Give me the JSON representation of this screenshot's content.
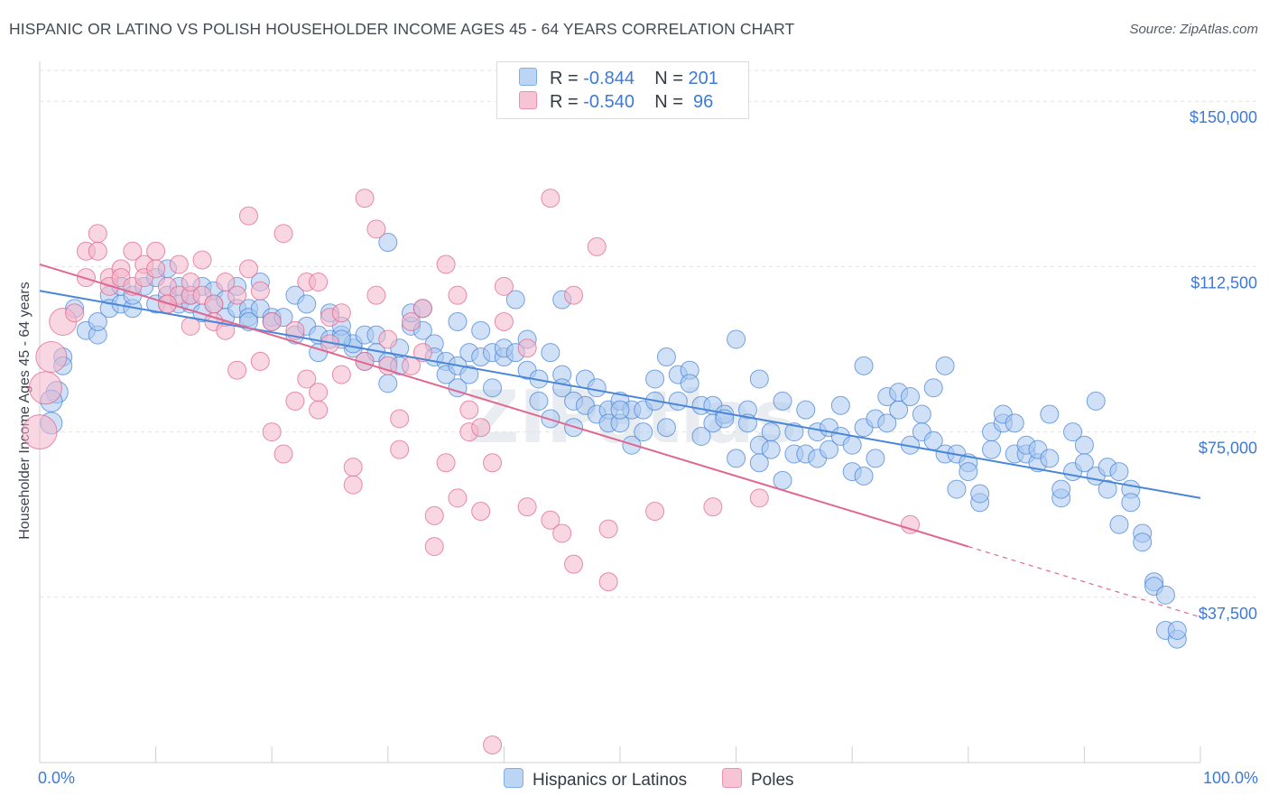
{
  "title": "HISPANIC OR LATINO VS POLISH HOUSEHOLDER INCOME AGES 45 - 64 YEARS CORRELATION CHART",
  "source": "Source: ZipAtlas.com",
  "watermark": "ZIPatlas",
  "legend_top": [
    {
      "r_label": "R =",
      "r_value": "-0.844",
      "n_label": "N =",
      "n_value": "201",
      "color": "#7eaee8",
      "fill": "#bdd5f4"
    },
    {
      "r_label": "R =",
      "r_value": "-0.540",
      "n_label": "N =",
      "n_value": " 96",
      "color": "#ef8fae",
      "fill": "#f7c4d5"
    }
  ],
  "chart_data": {
    "type": "scatter",
    "title": "HISPANIC OR LATINO VS POLISH HOUSEHOLDER INCOME AGES 45 - 64 YEARS CORRELATION CHART",
    "xlabel": "",
    "ylabel": "Householder Income Ages 45 - 64 years",
    "xlim": [
      0,
      100
    ],
    "ylim": [
      0,
      157000
    ],
    "x_tick_labels": [
      "0.0%",
      "100.0%"
    ],
    "y_ticks": [
      37500,
      75000,
      112500,
      150000
    ],
    "y_tick_labels": [
      "$37,500",
      "$75,000",
      "$112,500",
      "$150,000"
    ],
    "grid": "horizontal dashed",
    "legend_position": "bottom-center",
    "series": [
      {
        "name": "Hispanics or Latinos",
        "color": "#4a86d8",
        "fill": "#a9c8f0",
        "trend": {
          "x": [
            0,
            100
          ],
          "y": [
            107000,
            60000
          ],
          "style": "solid"
        },
        "points": [
          [
            2,
            92000
          ],
          [
            1,
            77000
          ],
          [
            1.5,
            84000
          ],
          [
            1,
            82000
          ],
          [
            2,
            90000
          ],
          [
            3,
            103000
          ],
          [
            4,
            98000
          ],
          [
            5,
            97000
          ],
          [
            5,
            100000
          ],
          [
            6,
            106000
          ],
          [
            6,
            103000
          ],
          [
            7,
            104000
          ],
          [
            7,
            108000
          ],
          [
            8,
            103000
          ],
          [
            8,
            106000
          ],
          [
            9,
            108000
          ],
          [
            10,
            104000
          ],
          [
            10,
            110000
          ],
          [
            11,
            112000
          ],
          [
            11,
            106000
          ],
          [
            12,
            104000
          ],
          [
            12,
            108000
          ],
          [
            13,
            104000
          ],
          [
            13,
            106000
          ],
          [
            14,
            108000
          ],
          [
            14,
            102000
          ],
          [
            15,
            107000
          ],
          [
            15,
            104000
          ],
          [
            16,
            105000
          ],
          [
            16,
            101000
          ],
          [
            17,
            108000
          ],
          [
            17,
            103000
          ],
          [
            18,
            103000
          ],
          [
            18,
            101000
          ],
          [
            19,
            109000
          ],
          [
            19,
            103000
          ],
          [
            20,
            101000
          ],
          [
            20,
            100000
          ],
          [
            21,
            101000
          ],
          [
            22,
            106000
          ],
          [
            22,
            97000
          ],
          [
            23,
            104000
          ],
          [
            23,
            99000
          ],
          [
            24,
            93000
          ],
          [
            24,
            97000
          ],
          [
            25,
            102000
          ],
          [
            25,
            96000
          ],
          [
            26,
            97000
          ],
          [
            26,
            99000
          ],
          [
            27,
            94000
          ],
          [
            27,
            95000
          ],
          [
            28,
            97000
          ],
          [
            28,
            91000
          ],
          [
            29,
            97000
          ],
          [
            29,
            93000
          ],
          [
            30,
            91000
          ],
          [
            30,
            86000
          ],
          [
            31,
            94000
          ],
          [
            31,
            90000
          ],
          [
            32,
            99000
          ],
          [
            32,
            102000
          ],
          [
            33,
            98000
          ],
          [
            33,
            103000
          ],
          [
            34,
            95000
          ],
          [
            34,
            92000
          ],
          [
            35,
            91000
          ],
          [
            35,
            88000
          ],
          [
            36,
            90000
          ],
          [
            36,
            85000
          ],
          [
            37,
            93000
          ],
          [
            37,
            88000
          ],
          [
            38,
            98000
          ],
          [
            38,
            92000
          ],
          [
            39,
            93000
          ],
          [
            39,
            85000
          ],
          [
            40,
            92000
          ],
          [
            40,
            94000
          ],
          [
            41,
            93000
          ],
          [
            41,
            105000
          ],
          [
            42,
            96000
          ],
          [
            42,
            89000
          ],
          [
            43,
            87000
          ],
          [
            43,
            82000
          ],
          [
            44,
            93000
          ],
          [
            44,
            78000
          ],
          [
            45,
            88000
          ],
          [
            45,
            85000
          ],
          [
            46,
            82000
          ],
          [
            46,
            76000
          ],
          [
            47,
            87000
          ],
          [
            47,
            81000
          ],
          [
            48,
            85000
          ],
          [
            48,
            79000
          ],
          [
            49,
            80000
          ],
          [
            49,
            77000
          ],
          [
            50,
            82000
          ],
          [
            50,
            77000
          ],
          [
            51,
            80000
          ],
          [
            51,
            72000
          ],
          [
            52,
            80000
          ],
          [
            52,
            75000
          ],
          [
            53,
            87000
          ],
          [
            53,
            82000
          ],
          [
            54,
            92000
          ],
          [
            54,
            76000
          ],
          [
            55,
            82000
          ],
          [
            55,
            88000
          ],
          [
            56,
            89000
          ],
          [
            56,
            86000
          ],
          [
            57,
            81000
          ],
          [
            57,
            74000
          ],
          [
            58,
            77000
          ],
          [
            58,
            81000
          ],
          [
            59,
            79000
          ],
          [
            59,
            78000
          ],
          [
            60,
            96000
          ],
          [
            60,
            69000
          ],
          [
            61,
            80000
          ],
          [
            61,
            77000
          ],
          [
            62,
            72000
          ],
          [
            62,
            68000
          ],
          [
            63,
            75000
          ],
          [
            63,
            71000
          ],
          [
            64,
            82000
          ],
          [
            64,
            64000
          ],
          [
            65,
            75000
          ],
          [
            65,
            70000
          ],
          [
            66,
            80000
          ],
          [
            66,
            70000
          ],
          [
            67,
            75000
          ],
          [
            67,
            69000
          ],
          [
            68,
            76000
          ],
          [
            68,
            71000
          ],
          [
            69,
            81000
          ],
          [
            69,
            74000
          ],
          [
            70,
            72000
          ],
          [
            70,
            66000
          ],
          [
            71,
            76000
          ],
          [
            71,
            90000
          ],
          [
            72,
            78000
          ],
          [
            72,
            69000
          ],
          [
            73,
            83000
          ],
          [
            73,
            77000
          ],
          [
            74,
            80000
          ],
          [
            74,
            84000
          ],
          [
            75,
            83000
          ],
          [
            75,
            72000
          ],
          [
            76,
            79000
          ],
          [
            76,
            75000
          ],
          [
            77,
            85000
          ],
          [
            77,
            73000
          ],
          [
            78,
            90000
          ],
          [
            78,
            70000
          ],
          [
            79,
            70000
          ],
          [
            79,
            62000
          ],
          [
            80,
            68000
          ],
          [
            80,
            66000
          ],
          [
            81,
            59000
          ],
          [
            81,
            61000
          ],
          [
            82,
            71000
          ],
          [
            82,
            75000
          ],
          [
            83,
            77000
          ],
          [
            83,
            79000
          ],
          [
            84,
            70000
          ],
          [
            84,
            77000
          ],
          [
            85,
            70000
          ],
          [
            85,
            72000
          ],
          [
            86,
            68000
          ],
          [
            86,
            71000
          ],
          [
            87,
            79000
          ],
          [
            87,
            69000
          ],
          [
            88,
            60000
          ],
          [
            88,
            62000
          ],
          [
            89,
            75000
          ],
          [
            89,
            66000
          ],
          [
            90,
            72000
          ],
          [
            90,
            68000
          ],
          [
            91,
            82000
          ],
          [
            91,
            65000
          ],
          [
            92,
            62000
          ],
          [
            92,
            67000
          ],
          [
            93,
            54000
          ],
          [
            93,
            66000
          ],
          [
            94,
            62000
          ],
          [
            94,
            59000
          ],
          [
            95,
            52000
          ],
          [
            95,
            50000
          ],
          [
            96,
            41000
          ],
          [
            96,
            40000
          ],
          [
            97,
            38000
          ],
          [
            97,
            30000
          ],
          [
            98,
            28000
          ],
          [
            98,
            30000
          ],
          [
            50,
            80000
          ],
          [
            30,
            118000
          ],
          [
            45,
            105000
          ],
          [
            62,
            87000
          ],
          [
            26,
            96000
          ],
          [
            18,
            100000
          ],
          [
            36,
            100000
          ],
          [
            71,
            65000
          ]
        ]
      },
      {
        "name": "Poles",
        "color": "#e0688f",
        "fill": "#f4b6ca",
        "trend": {
          "x": [
            0,
            80
          ],
          "y": [
            113000,
            49000
          ],
          "style": "solid",
          "dashed_extension": {
            "x": [
              80,
              100
            ],
            "y": [
              49000,
              33000
            ]
          }
        },
        "points": [
          [
            0,
            75000
          ],
          [
            0.5,
            85000
          ],
          [
            1,
            92000
          ],
          [
            2,
            100000
          ],
          [
            3,
            102000
          ],
          [
            4,
            110000
          ],
          [
            4,
            116000
          ],
          [
            5,
            120000
          ],
          [
            5,
            116000
          ],
          [
            6,
            110000
          ],
          [
            6,
            108000
          ],
          [
            7,
            112000
          ],
          [
            7,
            110000
          ],
          [
            8,
            108000
          ],
          [
            8,
            116000
          ],
          [
            9,
            113000
          ],
          [
            9,
            110000
          ],
          [
            10,
            116000
          ],
          [
            10,
            112000
          ],
          [
            11,
            108000
          ],
          [
            11,
            104000
          ],
          [
            12,
            113000
          ],
          [
            12,
            106000
          ],
          [
            13,
            106000
          ],
          [
            13,
            99000
          ],
          [
            14,
            114000
          ],
          [
            14,
            106000
          ],
          [
            15,
            104000
          ],
          [
            15,
            100000
          ],
          [
            16,
            98000
          ],
          [
            16,
            109000
          ],
          [
            17,
            106000
          ],
          [
            17,
            89000
          ],
          [
            18,
            112000
          ],
          [
            18,
            124000
          ],
          [
            19,
            107000
          ],
          [
            19,
            91000
          ],
          [
            20,
            100000
          ],
          [
            20,
            75000
          ],
          [
            21,
            120000
          ],
          [
            21,
            70000
          ],
          [
            22,
            98000
          ],
          [
            22,
            82000
          ],
          [
            23,
            87000
          ],
          [
            23,
            109000
          ],
          [
            24,
            84000
          ],
          [
            24,
            80000
          ],
          [
            25,
            101000
          ],
          [
            25,
            95000
          ],
          [
            26,
            88000
          ],
          [
            26,
            102000
          ],
          [
            27,
            67000
          ],
          [
            27,
            63000
          ],
          [
            28,
            128000
          ],
          [
            28,
            91000
          ],
          [
            29,
            121000
          ],
          [
            29,
            106000
          ],
          [
            30,
            96000
          ],
          [
            30,
            90000
          ],
          [
            31,
            71000
          ],
          [
            31,
            78000
          ],
          [
            32,
            100000
          ],
          [
            32,
            90000
          ],
          [
            33,
            103000
          ],
          [
            33,
            93000
          ],
          [
            34,
            56000
          ],
          [
            34,
            49000
          ],
          [
            35,
            113000
          ],
          [
            35,
            68000
          ],
          [
            36,
            106000
          ],
          [
            36,
            60000
          ],
          [
            37,
            80000
          ],
          [
            37,
            75000
          ],
          [
            38,
            76000
          ],
          [
            38,
            57000
          ],
          [
            39,
            4000
          ],
          [
            39,
            68000
          ],
          [
            40,
            108000
          ],
          [
            40,
            100000
          ],
          [
            42,
            58000
          ],
          [
            42,
            94000
          ],
          [
            44,
            128000
          ],
          [
            44,
            55000
          ],
          [
            45,
            52000
          ],
          [
            46,
            45000
          ],
          [
            46,
            106000
          ],
          [
            48,
            117000
          ],
          [
            49,
            53000
          ],
          [
            49,
            41000
          ],
          [
            53,
            57000
          ],
          [
            58,
            58000
          ],
          [
            62,
            60000
          ],
          [
            75,
            54000
          ],
          [
            11,
            104000
          ],
          [
            13,
            109000
          ],
          [
            24,
            109000
          ]
        ]
      }
    ]
  },
  "bottom_legend": [
    {
      "label": "Hispanics or Latinos",
      "color": "#7eaee8",
      "fill": "#bdd5f4"
    },
    {
      "label": "Poles",
      "color": "#ef8fae",
      "fill": "#f7c4d5"
    }
  ]
}
